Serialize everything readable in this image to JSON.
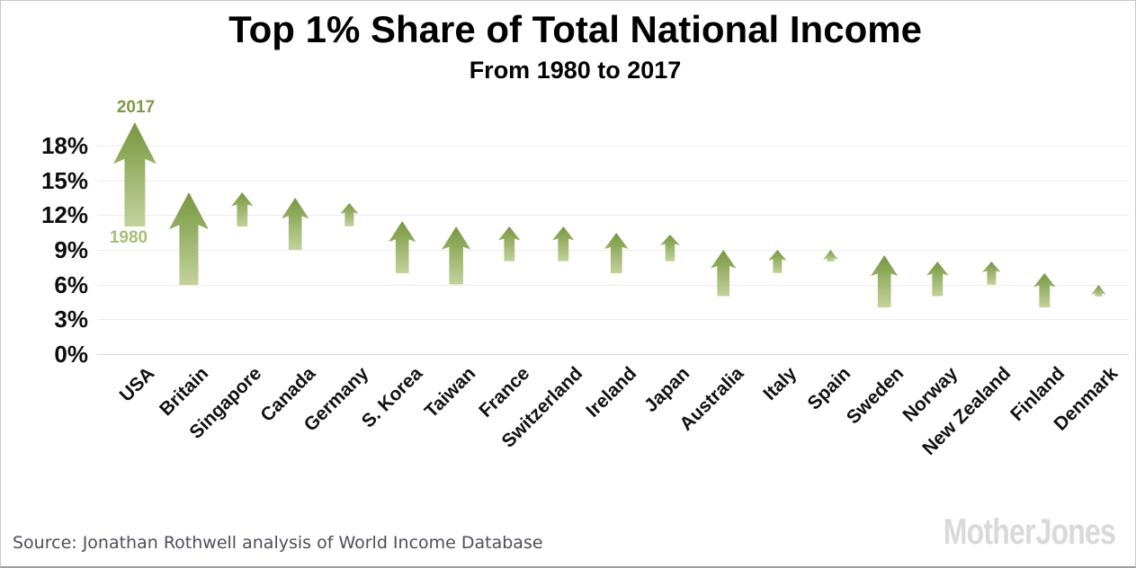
{
  "header": {
    "title": "Top 1% Share of Total National Income",
    "subtitle": "From 1980 to 2017"
  },
  "annotations": {
    "arrow_head_label": "2017",
    "arrow_tail_label": "1980"
  },
  "footer": {
    "source": "Source: Jonathan Rothwell analysis of World Income Database",
    "logo": "Mother Jones"
  },
  "colors": {
    "arrow_gradient_top": "#77963f",
    "arrow_gradient_bottom": "#c3d29c",
    "label_2017": "#7d9a45",
    "label_1980": "#a9c076",
    "grid": "#ececec",
    "axis_text": "#0d0d0d",
    "source_text": "#4c4f57",
    "logo_text": "#d9d9d9",
    "background": "#ffffff"
  },
  "chart_data": {
    "type": "bar",
    "variant": "arrow-range (tail = 1980 value, arrowhead tip = 2017 value)",
    "title": "Top 1% Share of Total National Income",
    "subtitle": "From 1980 to 2017",
    "xlabel": "",
    "ylabel": "",
    "yticks": [
      "0%",
      "3%",
      "6%",
      "9%",
      "12%",
      "15%",
      "18%"
    ],
    "ytick_values": [
      0,
      3,
      6,
      9,
      12,
      15,
      18
    ],
    "ylim": [
      0,
      21
    ],
    "grid": true,
    "legend_position": "none",
    "categories": [
      "USA",
      "Britain",
      "Singapore",
      "Canada",
      "Germany",
      "S. Korea",
      "Taiwan",
      "France",
      "Switzerland",
      "Ireland",
      "Japan",
      "Australia",
      "Italy",
      "Spain",
      "Sweden",
      "Norway",
      "New Zealand",
      "Finland",
      "Denmark"
    ],
    "series": [
      {
        "name": "1980",
        "values": [
          11,
          6,
          11,
          9,
          11,
          7,
          6,
          8,
          8,
          7,
          8,
          5,
          7,
          8,
          4,
          5,
          6,
          4,
          5
        ]
      },
      {
        "name": "2017",
        "values": [
          20,
          14,
          14,
          13.5,
          13,
          11.5,
          11,
          11,
          11,
          10.5,
          10.3,
          9,
          9,
          9,
          8.5,
          8,
          8,
          7,
          6
        ]
      }
    ]
  }
}
